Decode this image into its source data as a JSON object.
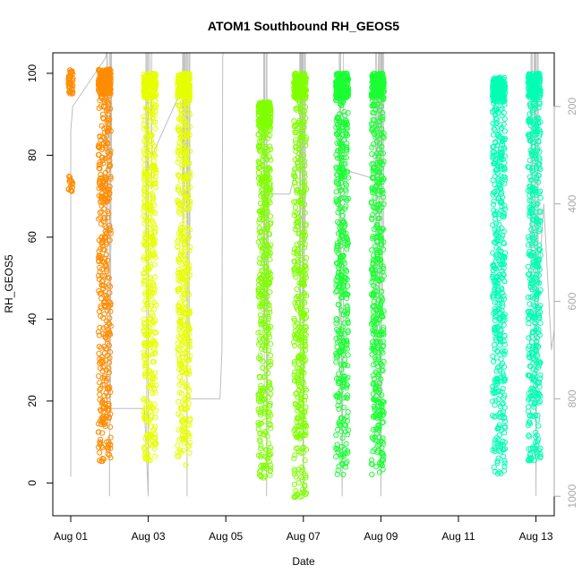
{
  "chart_data": {
    "type": "scatter",
    "title": "ATOM1 Southbound RH_GEOS5",
    "xlabel": "Date",
    "ylabel": "RH_GEOS5",
    "x_ticks": [
      "Aug 01",
      "Aug 03",
      "Aug 05",
      "Aug 07",
      "Aug 09",
      "Aug 11",
      "Aug 13"
    ],
    "y_ticks": [
      0,
      20,
      40,
      60,
      80,
      100
    ],
    "ylim": [
      -8,
      105
    ],
    "y2_ticks": [
      200,
      400,
      600,
      800,
      1000
    ],
    "y2lim": [
      1040,
      90
    ],
    "colors": {
      "aug01": "#FF8C00",
      "aug03": "#E6FF00",
      "aug06": "#80FF00",
      "aug08": "#1AFF33",
      "aug12": "#00FFB3",
      "pressure_trace": "#BEBEBE",
      "right_axis": "#AAAAAA"
    },
    "series": [
      {
        "color": "#FF8C00",
        "x": "2016-08-01 00:00",
        "y": [
          71,
          101
        ]
      },
      {
        "color": "#FF8C00",
        "x": "2016-08-01 21:00",
        "y": [
          5,
          101
        ]
      },
      {
        "color": "#E6FF00",
        "x": "2016-08-03 01:00",
        "y": [
          5,
          100
        ]
      },
      {
        "color": "#E6FF00",
        "x": "2016-08-03 22:00",
        "y": [
          4,
          100
        ]
      },
      {
        "color": "#80FF00",
        "x": "2016-08-06 00:00",
        "y": [
          1,
          93
        ]
      },
      {
        "color": "#80FF00",
        "x": "2016-08-06 22:00",
        "y": [
          -4,
          100
        ]
      },
      {
        "color": "#1AFF33",
        "x": "2016-08-08 00:00",
        "y": [
          2,
          100
        ]
      },
      {
        "color": "#1AFF33",
        "x": "2016-08-08 22:00",
        "y": [
          2,
          100
        ]
      },
      {
        "color": "#00FFB3",
        "x": "2016-08-12 01:00",
        "y": [
          2,
          99
        ]
      },
      {
        "color": "#00FFB3",
        "x": "2016-08-12 23:00",
        "y": [
          5,
          100
        ]
      }
    ]
  }
}
